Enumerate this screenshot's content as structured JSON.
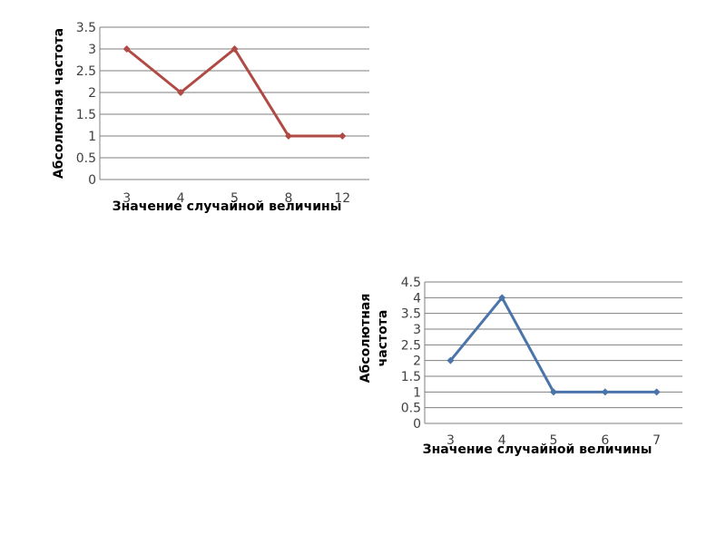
{
  "chart_data": [
    {
      "type": "line",
      "title": "",
      "xlabel": "Значение случайной величины",
      "ylabel": "Абсолютная частота",
      "categories": [
        "3",
        "4",
        "5",
        "8",
        "12"
      ],
      "series": [
        {
          "values": [
            3,
            2,
            3,
            1,
            1
          ]
        }
      ],
      "y_ticks": [
        "0",
        "0.5",
        "1",
        "1.5",
        "2",
        "2.5",
        "3",
        "3.5"
      ],
      "ylim": [
        0,
        3.5
      ],
      "grid": true,
      "legend": "none",
      "color": "#b04a45"
    },
    {
      "type": "line",
      "title": "",
      "xlabel": "Значение случайной величины",
      "ylabel": [
        "Абсолютная",
        "частота"
      ],
      "categories": [
        "3",
        "4",
        "5",
        "6",
        "7"
      ],
      "series": [
        {
          "values": [
            2,
            4,
            1,
            1,
            1
          ]
        }
      ],
      "y_ticks": [
        "0",
        "0.5",
        "1",
        "1.5",
        "2",
        "2.5",
        "3",
        "3.5",
        "4",
        "4.5"
      ],
      "ylim": [
        0,
        4.5
      ],
      "grid": true,
      "legend": "none",
      "color": "#4a74aa"
    }
  ]
}
